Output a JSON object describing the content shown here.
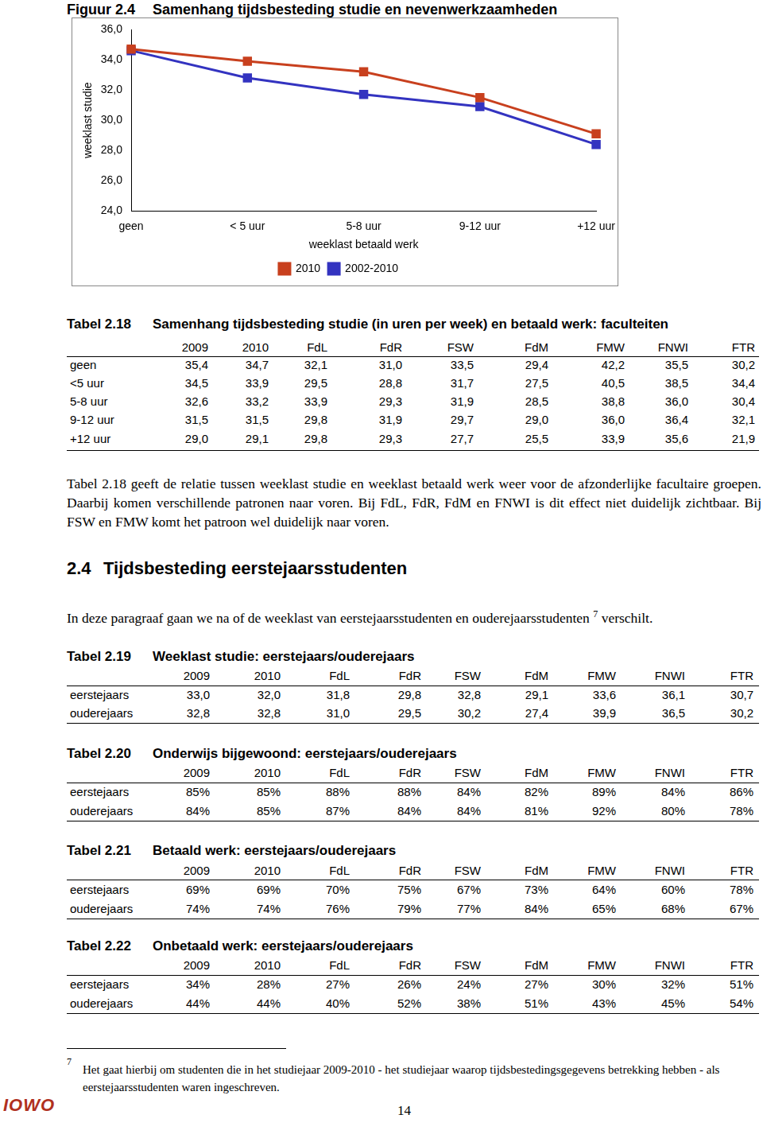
{
  "figure": {
    "label": "Figuur 2.4",
    "title": "Samenhang tijdsbesteding studie en nevenwerkzaamheden"
  },
  "chart_data": {
    "type": "line",
    "categories": [
      "geen",
      "< 5 uur",
      "5-8 uur",
      "9-12 uur",
      "+12 uur"
    ],
    "series": [
      {
        "name": "2010",
        "color": "#c8401e",
        "marker": "square",
        "values": [
          34.7,
          33.9,
          33.2,
          31.5,
          29.1
        ]
      },
      {
        "name": "2002-2010",
        "color": "#3333c0",
        "marker": "square",
        "values": [
          34.6,
          32.8,
          31.7,
          30.9,
          28.4
        ]
      }
    ],
    "x_label": "weeklast betaald werk",
    "y_label": "weeklast studie",
    "ylim": [
      24,
      36
    ],
    "yticks": [
      {
        "value": 24,
        "label": "24,0"
      },
      {
        "value": 26,
        "label": "26,0"
      },
      {
        "value": 28,
        "label": "28,0"
      },
      {
        "value": 30,
        "label": "30,0"
      },
      {
        "value": 32,
        "label": "32,0"
      },
      {
        "value": 34,
        "label": "34,0"
      },
      {
        "value": 36,
        "label": "36,0"
      }
    ],
    "grid": false,
    "legend": "bottom"
  },
  "tables": [
    {
      "label": "Tabel 2.18",
      "title": "Samenhang tijdsbesteding studie (in uren per week) en betaald werk: faculteiten",
      "columns": [
        "2009",
        "2010",
        "FdL",
        "FdR",
        "FSW",
        "FdM",
        "FMW",
        "FNWI",
        "FTR"
      ],
      "rows": [
        {
          "label": "geen",
          "cells": [
            "35,4",
            "34,7",
            "32,1",
            "31,0",
            "33,5",
            "29,4",
            "42,2",
            "35,5",
            "30,2"
          ]
        },
        {
          "label": "<5 uur",
          "cells": [
            "34,5",
            "33,9",
            "29,5",
            "28,8",
            "31,7",
            "27,5",
            "40,5",
            "38,5",
            "34,4"
          ]
        },
        {
          "label": "5-8 uur",
          "cells": [
            "32,6",
            "33,2",
            "33,9",
            "29,3",
            "31,9",
            "28,5",
            "38,8",
            "36,0",
            "30,4"
          ]
        },
        {
          "label": "9-12 uur",
          "cells": [
            "31,5",
            "31,5",
            "29,8",
            "31,9",
            "29,7",
            "29,0",
            "36,0",
            "36,4",
            "32,1"
          ]
        },
        {
          "label": "+12 uur",
          "cells": [
            "29,0",
            "29,1",
            "29,8",
            "29,3",
            "27,7",
            "25,5",
            "33,9",
            "35,6",
            "21,9"
          ]
        }
      ]
    },
    {
      "label": "Tabel 2.19",
      "title": "Weeklast studie: eerstejaars/ouderejaars",
      "columns": [
        "2009",
        "2010",
        "FdL",
        "FdR",
        "FSW",
        "FdM",
        "FMW",
        "FNWI",
        "FTR"
      ],
      "rows": [
        {
          "label": "eerstejaars",
          "cells": [
            "33,0",
            "32,0",
            "31,8",
            "29,8",
            "32,8",
            "29,1",
            "33,6",
            "36,1",
            "30,7"
          ]
        },
        {
          "label": "ouderejaars",
          "cells": [
            "32,8",
            "32,8",
            "31,0",
            "29,5",
            "30,2",
            "27,4",
            "39,9",
            "36,5",
            "30,2"
          ]
        }
      ]
    },
    {
      "label": "Tabel 2.20",
      "title": "Onderwijs bijgewoond: eerstejaars/ouderejaars",
      "columns": [
        "2009",
        "2010",
        "FdL",
        "FdR",
        "FSW",
        "FdM",
        "FMW",
        "FNWI",
        "FTR"
      ],
      "rows": [
        {
          "label": "eerstejaars",
          "cells": [
            "85%",
            "85%",
            "88%",
            "88%",
            "84%",
            "82%",
            "89%",
            "84%",
            "86%"
          ]
        },
        {
          "label": "ouderejaars",
          "cells": [
            "84%",
            "85%",
            "87%",
            "84%",
            "84%",
            "81%",
            "92%",
            "80%",
            "78%"
          ]
        }
      ]
    },
    {
      "label": "Tabel 2.21",
      "title": "Betaald werk: eerstejaars/ouderejaars",
      "columns": [
        "2009",
        "2010",
        "FdL",
        "FdR",
        "FSW",
        "FdM",
        "FMW",
        "FNWI",
        "FTR"
      ],
      "rows": [
        {
          "label": "eerstejaars",
          "cells": [
            "69%",
            "69%",
            "70%",
            "75%",
            "67%",
            "73%",
            "64%",
            "60%",
            "78%"
          ]
        },
        {
          "label": "ouderejaars",
          "cells": [
            "74%",
            "74%",
            "76%",
            "79%",
            "77%",
            "84%",
            "65%",
            "68%",
            "67%"
          ]
        }
      ]
    },
    {
      "label": "Tabel 2.22",
      "title": "Onbetaald werk: eerstejaars/ouderejaars",
      "columns": [
        "2009",
        "2010",
        "FdL",
        "FdR",
        "FSW",
        "FdM",
        "FMW",
        "FNWI",
        "FTR"
      ],
      "rows": [
        {
          "label": "eerstejaars",
          "cells": [
            "34%",
            "28%",
            "27%",
            "26%",
            "24%",
            "27%",
            "30%",
            "32%",
            "51%"
          ]
        },
        {
          "label": "ouderejaars",
          "cells": [
            "44%",
            "44%",
            "40%",
            "52%",
            "38%",
            "51%",
            "43%",
            "45%",
            "54%"
          ]
        }
      ]
    }
  ],
  "paragraph_2_18": "Tabel 2.18 geeft de relatie tussen weeklast studie en weeklast betaald werk weer voor de afzonderlijke facultaire groepen. Daarbij komen verschillende patronen naar voren. Bij FdL, FdR, FdM en FNWI is dit effect niet duidelijk zichtbaar. Bij FSW en FMW komt het patroon wel duidelijk naar voren.",
  "section": {
    "number": "2.4",
    "title": "Tijdsbesteding eerstejaarsstudenten"
  },
  "section_intro": {
    "before": "In deze paragraaf gaan we na of de weeklast van eerstejaarsstudenten en ouderejaarsstudenten",
    "mark": "7",
    "after": " verschilt."
  },
  "footnote": {
    "mark": "7",
    "text": "Het gaat hierbij om studenten die in het studiejaar 2009-2010 - het studiejaar waarop tijdsbestedingsgegevens betrekking hebben - als eerstejaarsstudenten waren ingeschreven."
  },
  "page_number": "14",
  "logo": "IOWO"
}
